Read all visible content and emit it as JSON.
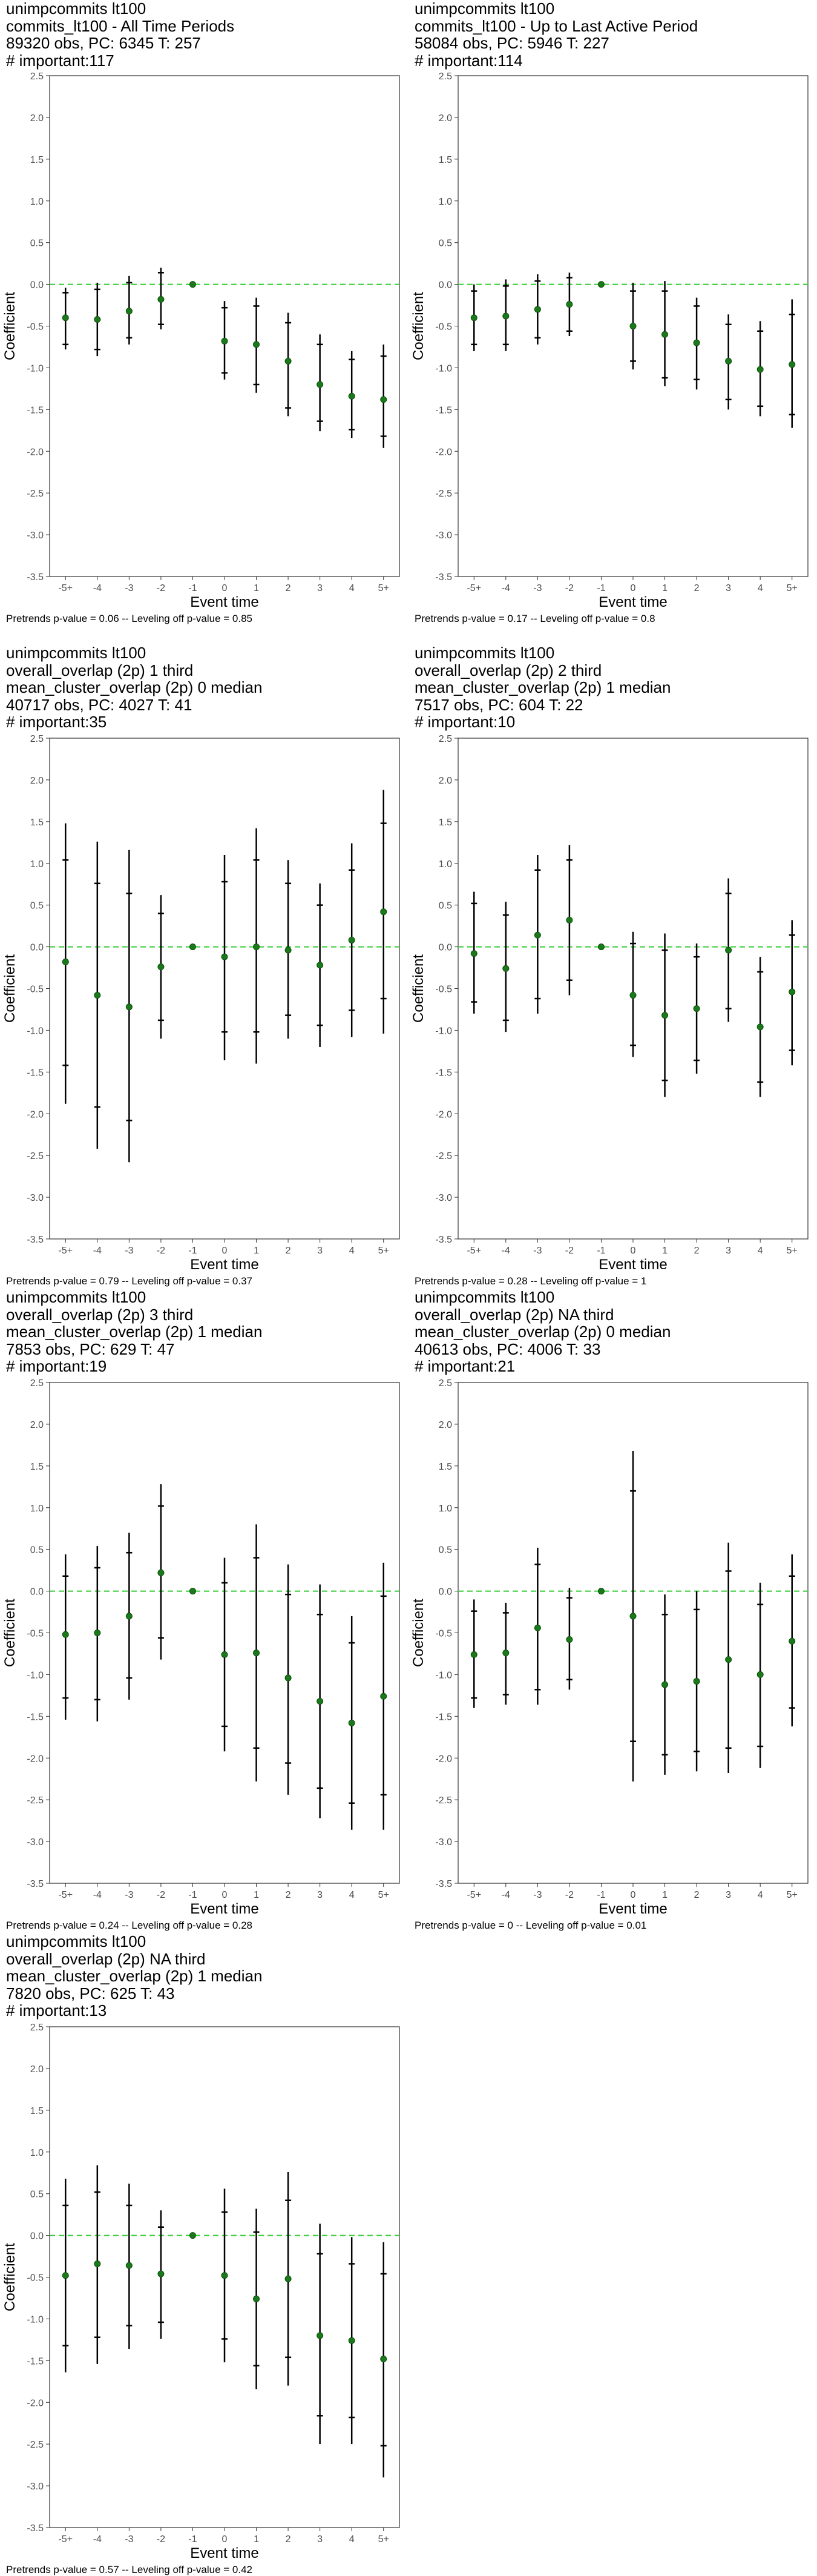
{
  "colors": {
    "zero_line": "#33cc33",
    "point": "#1a7a1a",
    "ci": "#000000",
    "frame": "#333333",
    "tick_text": "#4d4d4d"
  },
  "axis": {
    "xlabel": "Event time",
    "ylabel": "Coefficient",
    "ylim": [
      -3.5,
      2.5
    ],
    "yticks": [
      "2.5",
      "2.0",
      "1.5",
      "1.0",
      "0.5",
      "0.0",
      "-0.5",
      "-1.0",
      "-1.5",
      "-2.0",
      "-2.5",
      "-3.0",
      "-3.5"
    ],
    "categories": [
      "-5+",
      "-4",
      "-3",
      "-2",
      "-1",
      "0",
      "1",
      "2",
      "3",
      "4",
      "5+"
    ]
  },
  "chart_data": [
    {
      "type": "scatter",
      "title_lines": [
        " unimpcommits lt100",
        "commits_lt100 - All Time Periods",
        "89320 obs, PC: 6345 T: 257",
        "# important:117"
      ],
      "footnote": "Pretrends p-value = 0.06 -- Leveling off p-value = 0.85",
      "points": [
        {
          "x": "-5+",
          "y": -0.4,
          "ci90": [
            -0.72,
            -0.1
          ],
          "ci95": [
            -0.78,
            -0.04
          ]
        },
        {
          "x": "-4",
          "y": -0.42,
          "ci90": [
            -0.78,
            -0.06
          ],
          "ci95": [
            -0.86,
            0.02
          ]
        },
        {
          "x": "-3",
          "y": -0.32,
          "ci90": [
            -0.64,
            0.02
          ],
          "ci95": [
            -0.72,
            0.1
          ]
        },
        {
          "x": "-2",
          "y": -0.18,
          "ci90": [
            -0.48,
            0.14
          ],
          "ci95": [
            -0.54,
            0.2
          ]
        },
        {
          "x": "-1",
          "y": 0.0
        },
        {
          "x": "0",
          "y": -0.68,
          "ci90": [
            -1.06,
            -0.28
          ],
          "ci95": [
            -1.14,
            -0.2
          ]
        },
        {
          "x": "1",
          "y": -0.72,
          "ci90": [
            -1.2,
            -0.26
          ],
          "ci95": [
            -1.3,
            -0.16
          ]
        },
        {
          "x": "2",
          "y": -0.92,
          "ci90": [
            -1.48,
            -0.46
          ],
          "ci95": [
            -1.58,
            -0.34
          ]
        },
        {
          "x": "3",
          "y": -1.2,
          "ci90": [
            -1.64,
            -0.72
          ],
          "ci95": [
            -1.76,
            -0.6
          ]
        },
        {
          "x": "4",
          "y": -1.34,
          "ci90": [
            -1.74,
            -0.9
          ],
          "ci95": [
            -1.84,
            -0.8
          ]
        },
        {
          "x": "5+",
          "y": -1.38,
          "ci90": [
            -1.82,
            -0.86
          ],
          "ci95": [
            -1.96,
            -0.72
          ]
        }
      ]
    },
    {
      "type": "scatter",
      "title_lines": [
        " unimpcommits lt100",
        "commits_lt100 - Up to Last Active Period",
        "58084 obs, PC: 5946 T: 227",
        "# important:114"
      ],
      "footnote": "Pretrends p-value = 0.17 -- Leveling off p-value = 0.8",
      "points": [
        {
          "x": "-5+",
          "y": -0.4,
          "ci90": [
            -0.72,
            -0.08
          ],
          "ci95": [
            -0.8,
            0.0
          ]
        },
        {
          "x": "-4",
          "y": -0.38,
          "ci90": [
            -0.72,
            -0.02
          ],
          "ci95": [
            -0.8,
            0.06
          ]
        },
        {
          "x": "-3",
          "y": -0.3,
          "ci90": [
            -0.64,
            0.04
          ],
          "ci95": [
            -0.72,
            0.12
          ]
        },
        {
          "x": "-2",
          "y": -0.24,
          "ci90": [
            -0.56,
            0.08
          ],
          "ci95": [
            -0.62,
            0.14
          ]
        },
        {
          "x": "-1",
          "y": 0.0
        },
        {
          "x": "0",
          "y": -0.5,
          "ci90": [
            -0.92,
            -0.08
          ],
          "ci95": [
            -1.02,
            0.02
          ]
        },
        {
          "x": "1",
          "y": -0.6,
          "ci90": [
            -1.12,
            -0.08
          ],
          "ci95": [
            -1.22,
            0.04
          ]
        },
        {
          "x": "2",
          "y": -0.7,
          "ci90": [
            -1.14,
            -0.26
          ],
          "ci95": [
            -1.26,
            -0.16
          ]
        },
        {
          "x": "3",
          "y": -0.92,
          "ci90": [
            -1.38,
            -0.48
          ],
          "ci95": [
            -1.5,
            -0.36
          ]
        },
        {
          "x": "4",
          "y": -1.02,
          "ci90": [
            -1.46,
            -0.56
          ],
          "ci95": [
            -1.58,
            -0.44
          ]
        },
        {
          "x": "5+",
          "y": -0.96,
          "ci90": [
            -1.56,
            -0.36
          ],
          "ci95": [
            -1.72,
            -0.18
          ]
        }
      ]
    },
    {
      "type": "scatter",
      "title_lines": [
        " unimpcommits lt100",
        "overall_overlap (2p) 1 third",
        "mean_cluster_overlap (2p) 0 median",
        "40717 obs, PC: 4027 T: 41",
        "# important:35"
      ],
      "footnote": "Pretrends p-value = 0.79 -- Leveling off p-value = 0.37",
      "points": [
        {
          "x": "-5+",
          "y": -0.18,
          "ci90": [
            -1.42,
            1.04
          ],
          "ci95": [
            -1.88,
            1.48
          ]
        },
        {
          "x": "-4",
          "y": -0.58,
          "ci90": [
            -1.92,
            0.76
          ],
          "ci95": [
            -2.42,
            1.26
          ]
        },
        {
          "x": "-3",
          "y": -0.72,
          "ci90": [
            -2.08,
            0.64
          ],
          "ci95": [
            -2.58,
            1.16
          ]
        },
        {
          "x": "-2",
          "y": -0.24,
          "ci90": [
            -0.88,
            0.4
          ],
          "ci95": [
            -1.1,
            0.62
          ]
        },
        {
          "x": "-1",
          "y": 0.0
        },
        {
          "x": "0",
          "y": -0.12,
          "ci90": [
            -1.02,
            0.78
          ],
          "ci95": [
            -1.36,
            1.1
          ]
        },
        {
          "x": "1",
          "y": 0.0,
          "ci90": [
            -1.02,
            1.04
          ],
          "ci95": [
            -1.4,
            1.42
          ]
        },
        {
          "x": "2",
          "y": -0.04,
          "ci90": [
            -0.82,
            0.76
          ],
          "ci95": [
            -1.1,
            1.04
          ]
        },
        {
          "x": "3",
          "y": -0.22,
          "ci90": [
            -0.94,
            0.5
          ],
          "ci95": [
            -1.2,
            0.76
          ]
        },
        {
          "x": "4",
          "y": 0.08,
          "ci90": [
            -0.76,
            0.92
          ],
          "ci95": [
            -1.08,
            1.24
          ]
        },
        {
          "x": "5+",
          "y": 0.42,
          "ci90": [
            -0.62,
            1.48
          ],
          "ci95": [
            -1.04,
            1.88
          ]
        }
      ]
    },
    {
      "type": "scatter",
      "title_lines": [
        " unimpcommits lt100",
        "overall_overlap (2p) 2 third",
        "mean_cluster_overlap (2p) 1 median",
        "7517 obs, PC: 604 T: 22",
        "# important:10"
      ],
      "footnote": "Pretrends p-value = 0.28 -- Leveling off p-value = 1",
      "points": [
        {
          "x": "-5+",
          "y": -0.08,
          "ci90": [
            -0.66,
            0.52
          ],
          "ci95": [
            -0.8,
            0.66
          ]
        },
        {
          "x": "-4",
          "y": -0.26,
          "ci90": [
            -0.88,
            0.38
          ],
          "ci95": [
            -1.02,
            0.54
          ]
        },
        {
          "x": "-3",
          "y": 0.14,
          "ci90": [
            -0.62,
            0.92
          ],
          "ci95": [
            -0.8,
            1.1
          ]
        },
        {
          "x": "-2",
          "y": 0.32,
          "ci90": [
            -0.4,
            1.04
          ],
          "ci95": [
            -0.58,
            1.22
          ]
        },
        {
          "x": "-1",
          "y": 0.0
        },
        {
          "x": "0",
          "y": -0.58,
          "ci90": [
            -1.18,
            0.04
          ],
          "ci95": [
            -1.32,
            0.18
          ]
        },
        {
          "x": "1",
          "y": -0.82,
          "ci90": [
            -1.6,
            -0.04
          ],
          "ci95": [
            -1.8,
            0.16
          ]
        },
        {
          "x": "2",
          "y": -0.74,
          "ci90": [
            -1.36,
            -0.12
          ],
          "ci95": [
            -1.52,
            0.04
          ]
        },
        {
          "x": "3",
          "y": -0.04,
          "ci90": [
            -0.74,
            0.64
          ],
          "ci95": [
            -0.9,
            0.82
          ]
        },
        {
          "x": "4",
          "y": -0.96,
          "ci90": [
            -1.62,
            -0.3
          ],
          "ci95": [
            -1.8,
            -0.12
          ]
        },
        {
          "x": "5+",
          "y": -0.54,
          "ci90": [
            -1.24,
            0.14
          ],
          "ci95": [
            -1.42,
            0.32
          ]
        }
      ]
    },
    {
      "type": "scatter",
      "title_lines": [
        " unimpcommits lt100",
        "overall_overlap (2p) 3 third",
        "mean_cluster_overlap (2p) 1 median",
        "7853 obs, PC: 629 T: 47",
        "# important:19"
      ],
      "footnote": "Pretrends p-value = 0.24 -- Leveling off p-value = 0.28",
      "points": [
        {
          "x": "-5+",
          "y": -0.52,
          "ci90": [
            -1.28,
            0.18
          ],
          "ci95": [
            -1.54,
            0.44
          ]
        },
        {
          "x": "-4",
          "y": -0.5,
          "ci90": [
            -1.3,
            0.28
          ],
          "ci95": [
            -1.56,
            0.54
          ]
        },
        {
          "x": "-3",
          "y": -0.3,
          "ci90": [
            -1.04,
            0.46
          ],
          "ci95": [
            -1.3,
            0.7
          ]
        },
        {
          "x": "-2",
          "y": 0.22,
          "ci90": [
            -0.56,
            1.02
          ],
          "ci95": [
            -0.82,
            1.28
          ]
        },
        {
          "x": "-1",
          "y": 0.0
        },
        {
          "x": "0",
          "y": -0.76,
          "ci90": [
            -1.62,
            0.1
          ],
          "ci95": [
            -1.92,
            0.4
          ]
        },
        {
          "x": "1",
          "y": -0.74,
          "ci90": [
            -1.88,
            0.4
          ],
          "ci95": [
            -2.28,
            0.8
          ]
        },
        {
          "x": "2",
          "y": -1.04,
          "ci90": [
            -2.06,
            -0.04
          ],
          "ci95": [
            -2.44,
            0.32
          ]
        },
        {
          "x": "3",
          "y": -1.32,
          "ci90": [
            -2.36,
            -0.28
          ],
          "ci95": [
            -2.72,
            0.08
          ]
        },
        {
          "x": "4",
          "y": -1.58,
          "ci90": [
            -2.54,
            -0.62
          ],
          "ci95": [
            -2.86,
            -0.3
          ]
        },
        {
          "x": "5+",
          "y": -1.26,
          "ci90": [
            -2.44,
            -0.06
          ],
          "ci95": [
            -2.86,
            0.34
          ]
        }
      ]
    },
    {
      "type": "scatter",
      "title_lines": [
        " unimpcommits lt100",
        "overall_overlap (2p) NA third",
        "mean_cluster_overlap (2p) 0 median",
        "40613 obs, PC: 4006 T: 33",
        "# important:21"
      ],
      "footnote": "Pretrends p-value = 0 -- Leveling off p-value = 0.01",
      "points": [
        {
          "x": "-5+",
          "y": -0.76,
          "ci90": [
            -1.28,
            -0.24
          ],
          "ci95": [
            -1.4,
            -0.1
          ]
        },
        {
          "x": "-4",
          "y": -0.74,
          "ci90": [
            -1.24,
            -0.26
          ],
          "ci95": [
            -1.36,
            -0.14
          ]
        },
        {
          "x": "-3",
          "y": -0.44,
          "ci90": [
            -1.18,
            0.32
          ],
          "ci95": [
            -1.36,
            0.52
          ]
        },
        {
          "x": "-2",
          "y": -0.58,
          "ci90": [
            -1.06,
            -0.08
          ],
          "ci95": [
            -1.18,
            0.04
          ]
        },
        {
          "x": "-1",
          "y": 0.0
        },
        {
          "x": "0",
          "y": -0.3,
          "ci90": [
            -1.8,
            1.2
          ],
          "ci95": [
            -2.28,
            1.68
          ]
        },
        {
          "x": "1",
          "y": -1.12,
          "ci90": [
            -1.96,
            -0.28
          ],
          "ci95": [
            -2.2,
            -0.04
          ]
        },
        {
          "x": "2",
          "y": -1.08,
          "ci90": [
            -1.92,
            -0.22
          ],
          "ci95": [
            -2.16,
            0.0
          ]
        },
        {
          "x": "3",
          "y": -0.82,
          "ci90": [
            -1.88,
            0.24
          ],
          "ci95": [
            -2.18,
            0.58
          ]
        },
        {
          "x": "4",
          "y": -1.0,
          "ci90": [
            -1.86,
            -0.16
          ],
          "ci95": [
            -2.12,
            0.1
          ]
        },
        {
          "x": "5+",
          "y": -0.6,
          "ci90": [
            -1.4,
            0.18
          ],
          "ci95": [
            -1.62,
            0.44
          ]
        }
      ]
    },
    {
      "type": "scatter",
      "title_lines": [
        " unimpcommits lt100",
        "overall_overlap (2p) NA third",
        "mean_cluster_overlap (2p) 1 median",
        "7820 obs, PC: 625 T: 43",
        "# important:13"
      ],
      "footnote": "Pretrends p-value = 0.57 -- Leveling off p-value = 0.42",
      "points": [
        {
          "x": "-5+",
          "y": -0.48,
          "ci90": [
            -1.32,
            0.36
          ],
          "ci95": [
            -1.64,
            0.68
          ]
        },
        {
          "x": "-4",
          "y": -0.34,
          "ci90": [
            -1.22,
            0.52
          ],
          "ci95": [
            -1.54,
            0.84
          ]
        },
        {
          "x": "-3",
          "y": -0.36,
          "ci90": [
            -1.08,
            0.36
          ],
          "ci95": [
            -1.36,
            0.62
          ]
        },
        {
          "x": "-2",
          "y": -0.46,
          "ci90": [
            -1.04,
            0.1
          ],
          "ci95": [
            -1.24,
            0.3
          ]
        },
        {
          "x": "-1",
          "y": 0.0
        },
        {
          "x": "0",
          "y": -0.48,
          "ci90": [
            -1.24,
            0.28
          ],
          "ci95": [
            -1.52,
            0.56
          ]
        },
        {
          "x": "1",
          "y": -0.76,
          "ci90": [
            -1.56,
            0.04
          ],
          "ci95": [
            -1.84,
            0.32
          ]
        },
        {
          "x": "2",
          "y": -0.52,
          "ci90": [
            -1.46,
            0.42
          ],
          "ci95": [
            -1.8,
            0.76
          ]
        },
        {
          "x": "3",
          "y": -1.2,
          "ci90": [
            -2.16,
            -0.22
          ],
          "ci95": [
            -2.5,
            0.14
          ]
        },
        {
          "x": "4",
          "y": -1.26,
          "ci90": [
            -2.18,
            -0.34
          ],
          "ci95": [
            -2.5,
            -0.02
          ]
        },
        {
          "x": "5+",
          "y": -1.48,
          "ci90": [
            -2.52,
            -0.46
          ],
          "ci95": [
            -2.9,
            -0.08
          ]
        }
      ]
    }
  ]
}
